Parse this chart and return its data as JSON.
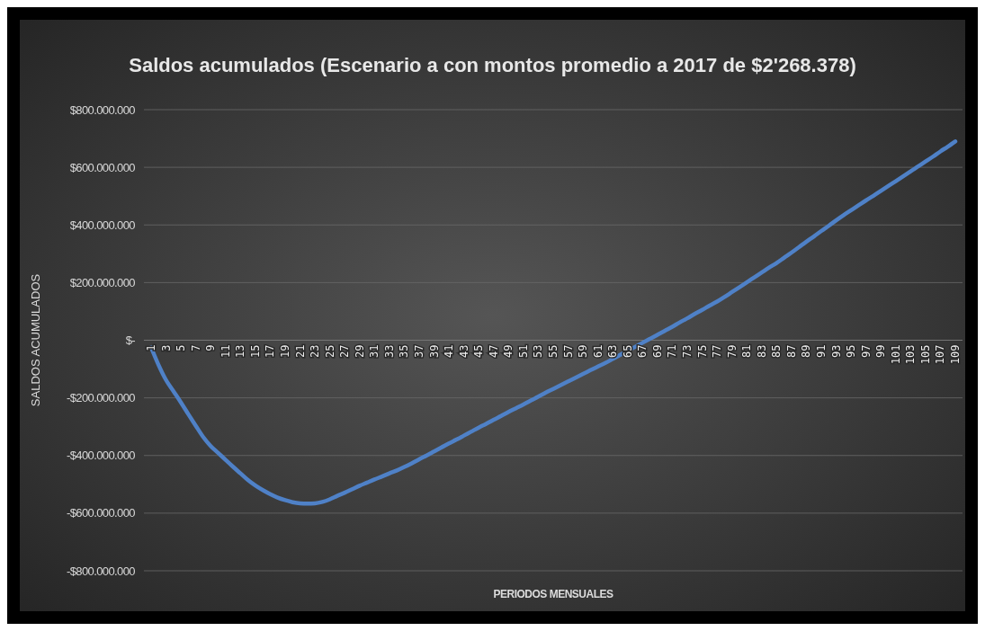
{
  "chart_data": {
    "type": "line",
    "title": "Saldos acumulados (Escenario a con montos promedio a 2017 de $2'268.378)",
    "xlabel": "PERIODOS MENSUALES",
    "ylabel": "SALDOS ACUMULADOS",
    "categories": [
      "1",
      null,
      "3",
      null,
      "5",
      null,
      "7",
      null,
      "9",
      null,
      "11",
      null,
      "13",
      null,
      "15",
      null,
      "17",
      null,
      "19",
      null,
      "21",
      null,
      "23",
      null,
      "25",
      null,
      "27",
      null,
      "29",
      null,
      "31",
      null,
      "33",
      null,
      "35",
      null,
      "37",
      null,
      "39",
      null,
      "41",
      null,
      "43",
      null,
      "45",
      null,
      "47",
      null,
      "49",
      null,
      "51",
      null,
      "53",
      null,
      "55",
      null,
      "57",
      null,
      "59",
      null,
      "61",
      null,
      "63",
      null,
      "65",
      null,
      "67",
      null,
      "69",
      null,
      "71",
      null,
      "73",
      null,
      "75",
      null,
      "77",
      null,
      "79",
      null,
      "81",
      null,
      "83",
      null,
      "85",
      null,
      "87",
      null,
      "89",
      null,
      "91",
      null,
      "93",
      null,
      "95",
      null,
      "97",
      null,
      "99",
      null,
      "101",
      null,
      "103",
      null,
      "105",
      null,
      "107",
      null,
      "109"
    ],
    "series": [
      {
        "color": "#4f81c7",
        "values": [
          -25000000,
          -86000000,
          -138000000,
          -177000000,
          -216000000,
          -257000000,
          -297000000,
          -336000000,
          -367000000,
          -391000000,
          -415000000,
          -439000000,
          -462000000,
          -485000000,
          -504000000,
          -520000000,
          -534000000,
          -546000000,
          -555000000,
          -562000000,
          -566000000,
          -567000000,
          -566000000,
          -561000000,
          -552000000,
          -540000000,
          -529000000,
          -517000000,
          -505000000,
          -494000000,
          -483000000,
          -473000000,
          -462000000,
          -452000000,
          -440000000,
          -427000000,
          -413000000,
          -400000000,
          -386000000,
          -372000000,
          -358000000,
          -345000000,
          -331000000,
          -317000000,
          -303000000,
          -290000000,
          -276000000,
          -263000000,
          -249000000,
          -236000000,
          -223000000,
          -209000000,
          -196000000,
          -182000000,
          -169000000,
          -156000000,
          -143000000,
          -130000000,
          -117000000,
          -104000000,
          -91000000,
          -79000000,
          -65000000,
          -51000000,
          -37000000,
          -23000000,
          -9000000,
          5000000,
          19000000,
          33000000,
          47000000,
          62000000,
          76000000,
          91000000,
          105000000,
          120000000,
          134000000,
          150000000,
          167000000,
          184000000,
          201000000,
          218000000,
          235000000,
          252000000,
          268000000,
          286000000,
          304000000,
          323000000,
          342000000,
          360000000,
          379000000,
          397000000,
          416000000,
          434000000,
          451000000,
          468000000,
          485000000,
          501000000,
          518000000,
          535000000,
          552000000,
          569000000,
          586000000,
          603000000,
          620000000,
          637000000,
          655000000,
          672000000,
          690000000
        ]
      }
    ],
    "ylim": [
      -800000000,
      800000000
    ],
    "yticks": [
      {
        "value": -800000000,
        "label": "-$800.000.000"
      },
      {
        "value": -600000000,
        "label": "-$600.000.000"
      },
      {
        "value": -400000000,
        "label": "-$400.000.000"
      },
      {
        "value": -200000000,
        "label": "-$200.000.000"
      },
      {
        "value": 0,
        "label": "$-"
      },
      {
        "value": 200000000,
        "label": "$200.000.000"
      },
      {
        "value": 400000000,
        "label": "$400.000.000"
      },
      {
        "value": 600000000,
        "label": "$600.000.000"
      },
      {
        "value": 800000000,
        "label": "$800.000.000"
      }
    ],
    "grid": true
  }
}
